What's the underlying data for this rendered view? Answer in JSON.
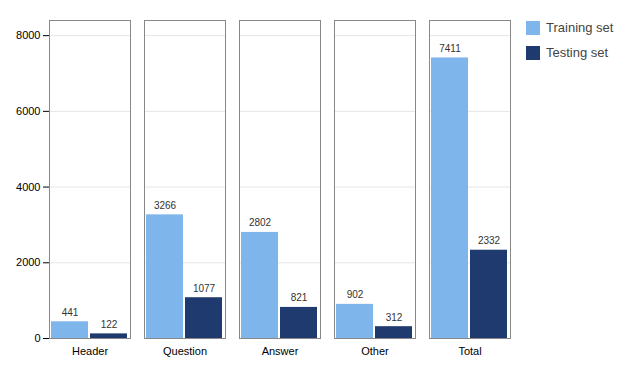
{
  "chart_data": {
    "type": "bar",
    "categories": [
      "Header",
      "Question",
      "Answer",
      "Other",
      "Total"
    ],
    "series": [
      {
        "name": "Training set",
        "color": "#7eb5ea",
        "values": [
          441,
          3266,
          2802,
          902,
          7411
        ]
      },
      {
        "name": "Testing set",
        "color": "#1e3a6e",
        "values": [
          122,
          1077,
          821,
          312,
          2332
        ]
      }
    ],
    "ylim": [
      0,
      8400
    ],
    "yticks": [
      0,
      2000,
      4000,
      6000,
      8000
    ],
    "grid": true,
    "legend": "right",
    "data_labels": true
  }
}
